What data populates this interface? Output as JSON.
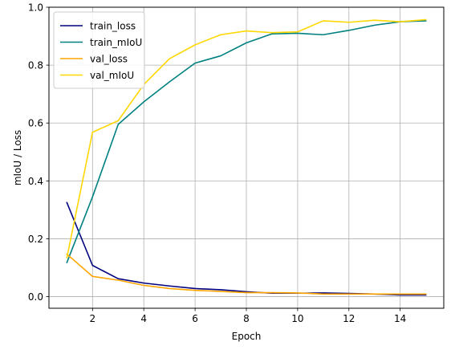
{
  "chart_data": {
    "type": "line",
    "title": "",
    "xlabel": "Epoch",
    "ylabel": "mIoU / Loss",
    "xlim": [
      0.3,
      15.7
    ],
    "ylim": [
      -0.04,
      1.0
    ],
    "xticks": [
      2,
      4,
      6,
      8,
      10,
      12,
      14
    ],
    "xtick_labels": [
      "2",
      "4",
      "6",
      "8",
      "10",
      "12",
      "14"
    ],
    "yticks": [
      0.0,
      0.2,
      0.4,
      0.6,
      0.8,
      1.0
    ],
    "ytick_labels": [
      "0.0",
      "0.2",
      "0.4",
      "0.6",
      "0.8",
      "1.0"
    ],
    "grid": true,
    "legend_position": "top-left",
    "x": [
      1,
      2,
      3,
      4,
      5,
      6,
      7,
      8,
      9,
      10,
      11,
      12,
      13,
      14,
      15
    ],
    "series": [
      {
        "name": "train_loss",
        "color": "#000080",
        "values": [
          0.325,
          0.108,
          0.062,
          0.047,
          0.037,
          0.028,
          0.024,
          0.017,
          0.012,
          0.012,
          0.013,
          0.011,
          0.009,
          0.006,
          0.006
        ]
      },
      {
        "name": "train_mIoU",
        "color": "#008080",
        "values": [
          0.118,
          0.345,
          0.595,
          0.673,
          0.742,
          0.807,
          0.832,
          0.877,
          0.908,
          0.91,
          0.905,
          0.92,
          0.938,
          0.95,
          0.953
        ]
      },
      {
        "name": "val_loss",
        "color": "#FFA500",
        "values": [
          0.147,
          0.07,
          0.057,
          0.039,
          0.028,
          0.022,
          0.018,
          0.014,
          0.014,
          0.013,
          0.009,
          0.009,
          0.009,
          0.009,
          0.009
        ]
      },
      {
        "name": "val_mIoU",
        "color": "#FFD700",
        "values": [
          0.135,
          0.568,
          0.608,
          0.733,
          0.822,
          0.87,
          0.905,
          0.918,
          0.912,
          0.915,
          0.953,
          0.948,
          0.955,
          0.95,
          0.957
        ]
      }
    ]
  }
}
